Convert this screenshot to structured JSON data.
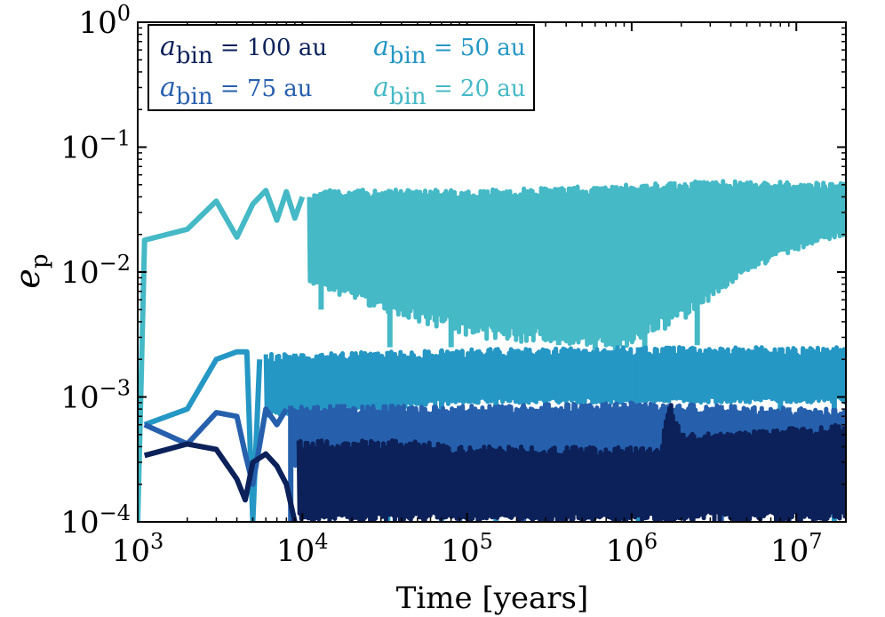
{
  "chart_data": {
    "type": "line",
    "xscale": "log",
    "yscale": "log",
    "xlim": [
      1000,
      20000000
    ],
    "ylim": [
      0.0001,
      1
    ],
    "xlabel": "Time [years]",
    "ylabel": {
      "main": "e",
      "sub": "p"
    },
    "xticks": [
      {
        "value": 1000,
        "base": "10",
        "exp": "3"
      },
      {
        "value": 10000,
        "base": "10",
        "exp": "4"
      },
      {
        "value": 100000,
        "base": "10",
        "exp": "5"
      },
      {
        "value": 1000000,
        "base": "10",
        "exp": "6"
      },
      {
        "value": 10000000,
        "base": "10",
        "exp": "7"
      }
    ],
    "yticks": [
      {
        "value": 0.0001,
        "base": "10",
        "exp": "−4"
      },
      {
        "value": 0.001,
        "base": "10",
        "exp": "−3"
      },
      {
        "value": 0.01,
        "base": "10",
        "exp": "−2"
      },
      {
        "value": 0.1,
        "base": "10",
        "exp": "−1"
      },
      {
        "value": 1,
        "base": "10",
        "exp": "0"
      }
    ],
    "legend_position": "top-left",
    "series": [
      {
        "name": "abin = 20 au",
        "legend": {
          "symbol": "a",
          "sub": "bin",
          "rest": " = 20 au"
        },
        "color": "#45b9c6",
        "start": [
          [
            1000,
            0.0001
          ],
          [
            1100,
            0.018
          ],
          [
            2000,
            0.022
          ],
          [
            3000,
            0.037
          ],
          [
            4000,
            0.019
          ],
          [
            5000,
            0.035
          ],
          [
            6000,
            0.045
          ],
          [
            7000,
            0.026
          ],
          [
            8000,
            0.044
          ],
          [
            9000,
            0.027
          ],
          [
            10000,
            0.04
          ]
        ],
        "envelope": {
          "upper": [
            [
              11000,
              0.04
            ],
            [
              15000,
              0.047
            ],
            [
              30000,
              0.046
            ],
            [
              100000,
              0.045
            ],
            [
              1000000,
              0.05
            ],
            [
              3000000,
              0.055
            ],
            [
              10000000,
              0.053
            ],
            [
              20000000,
              0.052
            ]
          ],
          "lower": [
            [
              11000,
              0.008
            ],
            [
              20000,
              0.006
            ],
            [
              50000,
              0.004
            ],
            [
              100000,
              0.003
            ],
            [
              500000,
              0.0025
            ],
            [
              1000000,
              0.0025
            ],
            [
              2000000,
              0.004
            ],
            [
              5000000,
              0.01
            ],
            [
              10000000,
              0.015
            ],
            [
              20000000,
              0.02
            ]
          ]
        },
        "dips": [
          [
            13000,
            0.005
          ],
          [
            22000,
            0.01
          ],
          [
            34000,
            0.0025
          ],
          [
            80000,
            0.0025
          ],
          [
            360000,
            0.0026
          ],
          [
            600000,
            0.0024
          ],
          [
            800000,
            0.0022
          ],
          [
            1200000,
            0.0024
          ],
          [
            2500000,
            0.0026
          ]
        ]
      },
      {
        "name": "abin = 50 au",
        "legend": {
          "symbol": "a",
          "sub": "bin",
          "rest": " = 50 au"
        },
        "color": "#2597c5",
        "start": [
          [
            1100,
            0.0006
          ],
          [
            2000,
            0.0008
          ],
          [
            3000,
            0.002
          ],
          [
            4000,
            0.0023
          ],
          [
            4600,
            0.0023
          ],
          [
            5000,
            0.0001
          ],
          [
            5500,
            0.002
          ]
        ],
        "envelope": {
          "upper": [
            [
              6000,
              0.0022
            ],
            [
              30000,
              0.0023
            ],
            [
              100000,
              0.0024
            ],
            [
              1000000,
              0.0025
            ],
            [
              20000000,
              0.0025
            ]
          ],
          "lower": [
            [
              6000,
              0.0007
            ],
            [
              30000,
              0.0008
            ],
            [
              100000,
              0.0009
            ],
            [
              1000000,
              0.0009
            ],
            [
              20000000,
              0.0009
            ]
          ]
        },
        "dips": [
          [
            9000,
            0.0004
          ],
          [
            33000,
            0.0001
          ],
          [
            70000,
            0.0001
          ],
          [
            150000,
            0.0001
          ],
          [
            300000,
            0.0001
          ],
          [
            1100000,
            0.0001
          ],
          [
            8000000,
            0.0001
          ],
          [
            17000000,
            0.0001
          ]
        ]
      },
      {
        "name": "abin = 75 au",
        "legend": {
          "symbol": "a",
          "sub": "bin",
          "rest": " = 75 au"
        },
        "color": "#2660ad",
        "start": [
          [
            1100,
            0.0006
          ],
          [
            2000,
            0.00042
          ],
          [
            3000,
            0.00075
          ],
          [
            4000,
            0.0007
          ],
          [
            4500,
            0.00035
          ],
          [
            5000,
            0.0002
          ],
          [
            6000,
            0.0008
          ],
          [
            7000,
            0.0006
          ],
          [
            8000,
            0.0008
          ]
        ],
        "envelope": {
          "upper": [
            [
              8500,
              0.00085
            ],
            [
              100000,
              0.00085
            ],
            [
              1000000,
              0.0009
            ],
            [
              20000000,
              0.0008
            ]
          ],
          "lower": [
            [
              8500,
              0.00028
            ],
            [
              100000,
              0.0003
            ],
            [
              1000000,
              0.0003
            ],
            [
              20000000,
              0.0003
            ]
          ]
        },
        "dips": [
          [
            8500,
            0.0001
          ],
          [
            40000,
            0.0001
          ],
          [
            90000,
            0.0001
          ],
          [
            220000,
            0.0001
          ],
          [
            500000,
            0.0001
          ],
          [
            900000,
            0.0001
          ],
          [
            1700000,
            0.0001
          ],
          [
            3500000,
            0.0001
          ],
          [
            9000000,
            0.0001
          ]
        ]
      },
      {
        "name": "abin = 100 au",
        "legend": {
          "symbol": "a",
          "sub": "bin",
          "rest": " = 100 au"
        },
        "color": "#0c215a",
        "start": [
          [
            1100,
            0.00034
          ],
          [
            2000,
            0.00042
          ],
          [
            3000,
            0.00038
          ],
          [
            4000,
            0.00022
          ],
          [
            4500,
            0.00015
          ],
          [
            5000,
            0.0003
          ],
          [
            6000,
            0.00035
          ],
          [
            7000,
            0.00028
          ],
          [
            8000,
            0.0002
          ],
          [
            9000,
            0.0001
          ]
        ],
        "envelope": {
          "upper": [
            [
              9500,
              0.00045
            ],
            [
              50000,
              0.00045
            ],
            [
              100000,
              0.0004
            ],
            [
              1500000,
              0.0004
            ],
            [
              1700000,
              0.00095
            ],
            [
              2000000,
              0.0005
            ],
            [
              20000000,
              0.0006
            ]
          ],
          "lower": [
            [
              9500,
              0.0001
            ],
            [
              20000000,
              0.0001
            ]
          ]
        },
        "dips": []
      }
    ]
  }
}
